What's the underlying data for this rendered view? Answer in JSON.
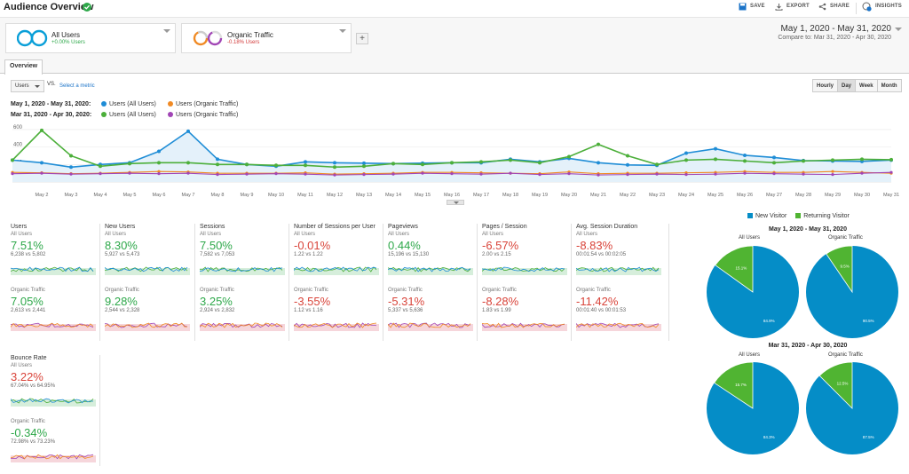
{
  "header": {
    "title": "Audience Overview",
    "save": "SAVE",
    "export": "EXPORT",
    "share": "SHARE",
    "insights": "INSIGHTS",
    "insights_badge": "5"
  },
  "segments": [
    {
      "name": "All Users",
      "sub": "+0.00% Users",
      "color": "#2ea84a"
    },
    {
      "name": "Organic Traffic",
      "sub": "-0.18% Users",
      "color": "#d23a3a"
    }
  ],
  "daterange": {
    "primary": "May 1, 2020 - May 31, 2020",
    "compare_label": "Compare to:",
    "compare": "Mar 31, 2020 - Apr 30, 2020"
  },
  "tabs": {
    "overview": "Overview"
  },
  "controls": {
    "metric": "Users",
    "vs": "VS.",
    "select_metric": "Select a metric",
    "granularity": [
      "Hourly",
      "Day",
      "Week",
      "Month"
    ],
    "granularity_selected": "Day"
  },
  "legend": {
    "row1_label": "May 1, 2020 - May 31, 2020:",
    "row2_label": "Mar 31, 2020 - Apr 30, 2020:",
    "all_users": "Users (All Users)",
    "organic": "Users (Organic Traffic)",
    "colors": {
      "may_all": "#1f8dd6",
      "may_org": "#f08a24",
      "mar_all": "#4caf3a",
      "mar_org": "#a145b5"
    }
  },
  "chart_data": {
    "type": "line",
    "x": [
      "May 1",
      "May 2",
      "May 3",
      "May 4",
      "May 5",
      "May 6",
      "May 7",
      "May 8",
      "May 9",
      "May 10",
      "May 11",
      "May 12",
      "May 13",
      "May 14",
      "May 15",
      "May 16",
      "May 17",
      "May 18",
      "May 19",
      "May 20",
      "May 21",
      "May 22",
      "May 23",
      "May 24",
      "May 25",
      "May 26",
      "May 27",
      "May 28",
      "May 29",
      "May 30",
      "May 31"
    ],
    "xlabels": [
      "May 2",
      "May 3",
      "May 4",
      "May 5",
      "May 6",
      "May 7",
      "May 8",
      "May 9",
      "May 10",
      "May 11",
      "May 12",
      "May 13",
      "May 14",
      "May 15",
      "May 16",
      "May 17",
      "May 18",
      "May 19",
      "May 20",
      "May 21",
      "May 22",
      "May 23",
      "May 24",
      "May 25",
      "May 26",
      "May 27",
      "May 28",
      "May 29",
      "May 30",
      "May 31"
    ],
    "yticks": [
      200,
      400,
      600
    ],
    "ylim": [
      0,
      650
    ],
    "series": [
      {
        "name": "Users (All Users)",
        "period": "May 1, 2020 - May 31, 2020",
        "color": "#1f8dd6",
        "values": [
          250,
          220,
          170,
          200,
          220,
          350,
          580,
          260,
          200,
          180,
          230,
          220,
          215,
          210,
          215,
          220,
          220,
          260,
          230,
          270,
          220,
          195,
          190,
          330,
          380,
          305,
          280,
          245,
          240,
          235,
          250
        ]
      },
      {
        "name": "Users (Organic Traffic)",
        "period": "May 1, 2020 - May 31, 2020",
        "color": "#f08a24",
        "values": [
          110,
          105,
          95,
          100,
          110,
          120,
          115,
          100,
          100,
          100,
          105,
          90,
          95,
          100,
          110,
          110,
          105,
          100,
          95,
          115,
          95,
          100,
          100,
          105,
          110,
          120,
          110,
          110,
          120,
          110,
          100
        ]
      },
      {
        "name": "Users (All Users)",
        "period": "Mar 31, 2020 - Apr 30, 2020",
        "color": "#4caf3a",
        "values": [
          250,
          590,
          300,
          180,
          210,
          220,
          220,
          200,
          200,
          190,
          190,
          170,
          180,
          210,
          200,
          220,
          230,
          250,
          220,
          290,
          430,
          300,
          200,
          250,
          260,
          240,
          220,
          240,
          250,
          260,
          255
        ]
      },
      {
        "name": "Users (Organic Traffic)",
        "period": "Mar 31, 2020 - Apr 30, 2020",
        "color": "#a145b5",
        "values": [
          95,
          100,
          90,
          95,
          100,
          95,
          100,
          85,
          90,
          95,
          90,
          80,
          85,
          90,
          100,
          95,
          90,
          100,
          85,
          95,
          80,
          85,
          90,
          85,
          90,
          100,
          95,
          90,
          85,
          100,
          110
        ]
      }
    ]
  },
  "metrics": [
    {
      "title": "Users",
      "seg1": "All Users",
      "pct1": "7.51%",
      "cmp1": "6,238 vs 5,802",
      "seg2": "Organic Traffic",
      "pct2": "7.05%",
      "cmp2": "2,613 vs 2,441",
      "good1": true,
      "good2": true
    },
    {
      "title": "New Users",
      "seg1": "All Users",
      "pct1": "8.30%",
      "cmp1": "5,927 vs 5,473",
      "seg2": "Organic Traffic",
      "pct2": "9.28%",
      "cmp2": "2,544 vs 2,328",
      "good1": true,
      "good2": true
    },
    {
      "title": "Sessions",
      "seg1": "All Users",
      "pct1": "7.50%",
      "cmp1": "7,582 vs 7,053",
      "seg2": "Organic Traffic",
      "pct2": "3.25%",
      "cmp2": "2,924 vs 2,832",
      "good1": true,
      "good2": true
    },
    {
      "title": "Number of Sessions per User",
      "seg1": "All Users",
      "pct1": "-0.01%",
      "cmp1": "1.22 vs 1.22",
      "seg2": "Organic Traffic",
      "pct2": "-3.55%",
      "cmp2": "1.12 vs 1.16",
      "good1": false,
      "good2": false
    },
    {
      "title": "Pageviews",
      "seg1": "All Users",
      "pct1": "0.44%",
      "cmp1": "15,196 vs 15,130",
      "seg2": "Organic Traffic",
      "pct2": "-5.31%",
      "cmp2": "5,337 vs 5,636",
      "good1": true,
      "good2": false
    },
    {
      "title": "Pages / Session",
      "seg1": "All Users",
      "pct1": "-6.57%",
      "cmp1": "2.00 vs 2.15",
      "seg2": "Organic Traffic",
      "pct2": "-8.28%",
      "cmp2": "1.83 vs 1.99",
      "good1": false,
      "good2": false
    },
    {
      "title": "Avg. Session Duration",
      "seg1": "All Users",
      "pct1": "-8.83%",
      "cmp1": "00:01:54 vs 00:02:05",
      "seg2": "Organic Traffic",
      "pct2": "-11.42%",
      "cmp2": "00:01:40 vs 00:01:53",
      "good1": false,
      "good2": false
    },
    {
      "title": "Bounce Rate",
      "seg1": "All Users",
      "pct1": "3.22%",
      "cmp1": "67.04% vs 64.95%",
      "seg2": "Organic Traffic",
      "pct2": "-0.34%",
      "cmp2": "72.98% vs 73.23%",
      "good1": false,
      "good2": true
    }
  ],
  "colors": {
    "positive": "#2ea84a",
    "negative": "#d9443a",
    "new_visitor": "#058dc7",
    "returning_visitor": "#50b432"
  },
  "pies": {
    "legend_new": "New Visitor",
    "legend_returning": "Returning Visitor",
    "period1": "May 1, 2020 - May 31, 2020",
    "period2": "Mar 31, 2020 - Apr 30, 2020",
    "all_users": "All Users",
    "organic": "Organic Traffic",
    "items": [
      {
        "new": 84.9,
        "ret": 15.1,
        "new_label": "84.9%",
        "ret_label": "15.1%"
      },
      {
        "new": 90.5,
        "ret": 9.5,
        "new_label": "90.5%",
        "ret_label": "9.5%"
      },
      {
        "new": 84.3,
        "ret": 15.7,
        "new_label": "84.3%",
        "ret_label": "15.7%"
      },
      {
        "new": 87.5,
        "ret": 12.5,
        "new_label": "87.5%",
        "ret_label": "12.5%"
      }
    ]
  }
}
